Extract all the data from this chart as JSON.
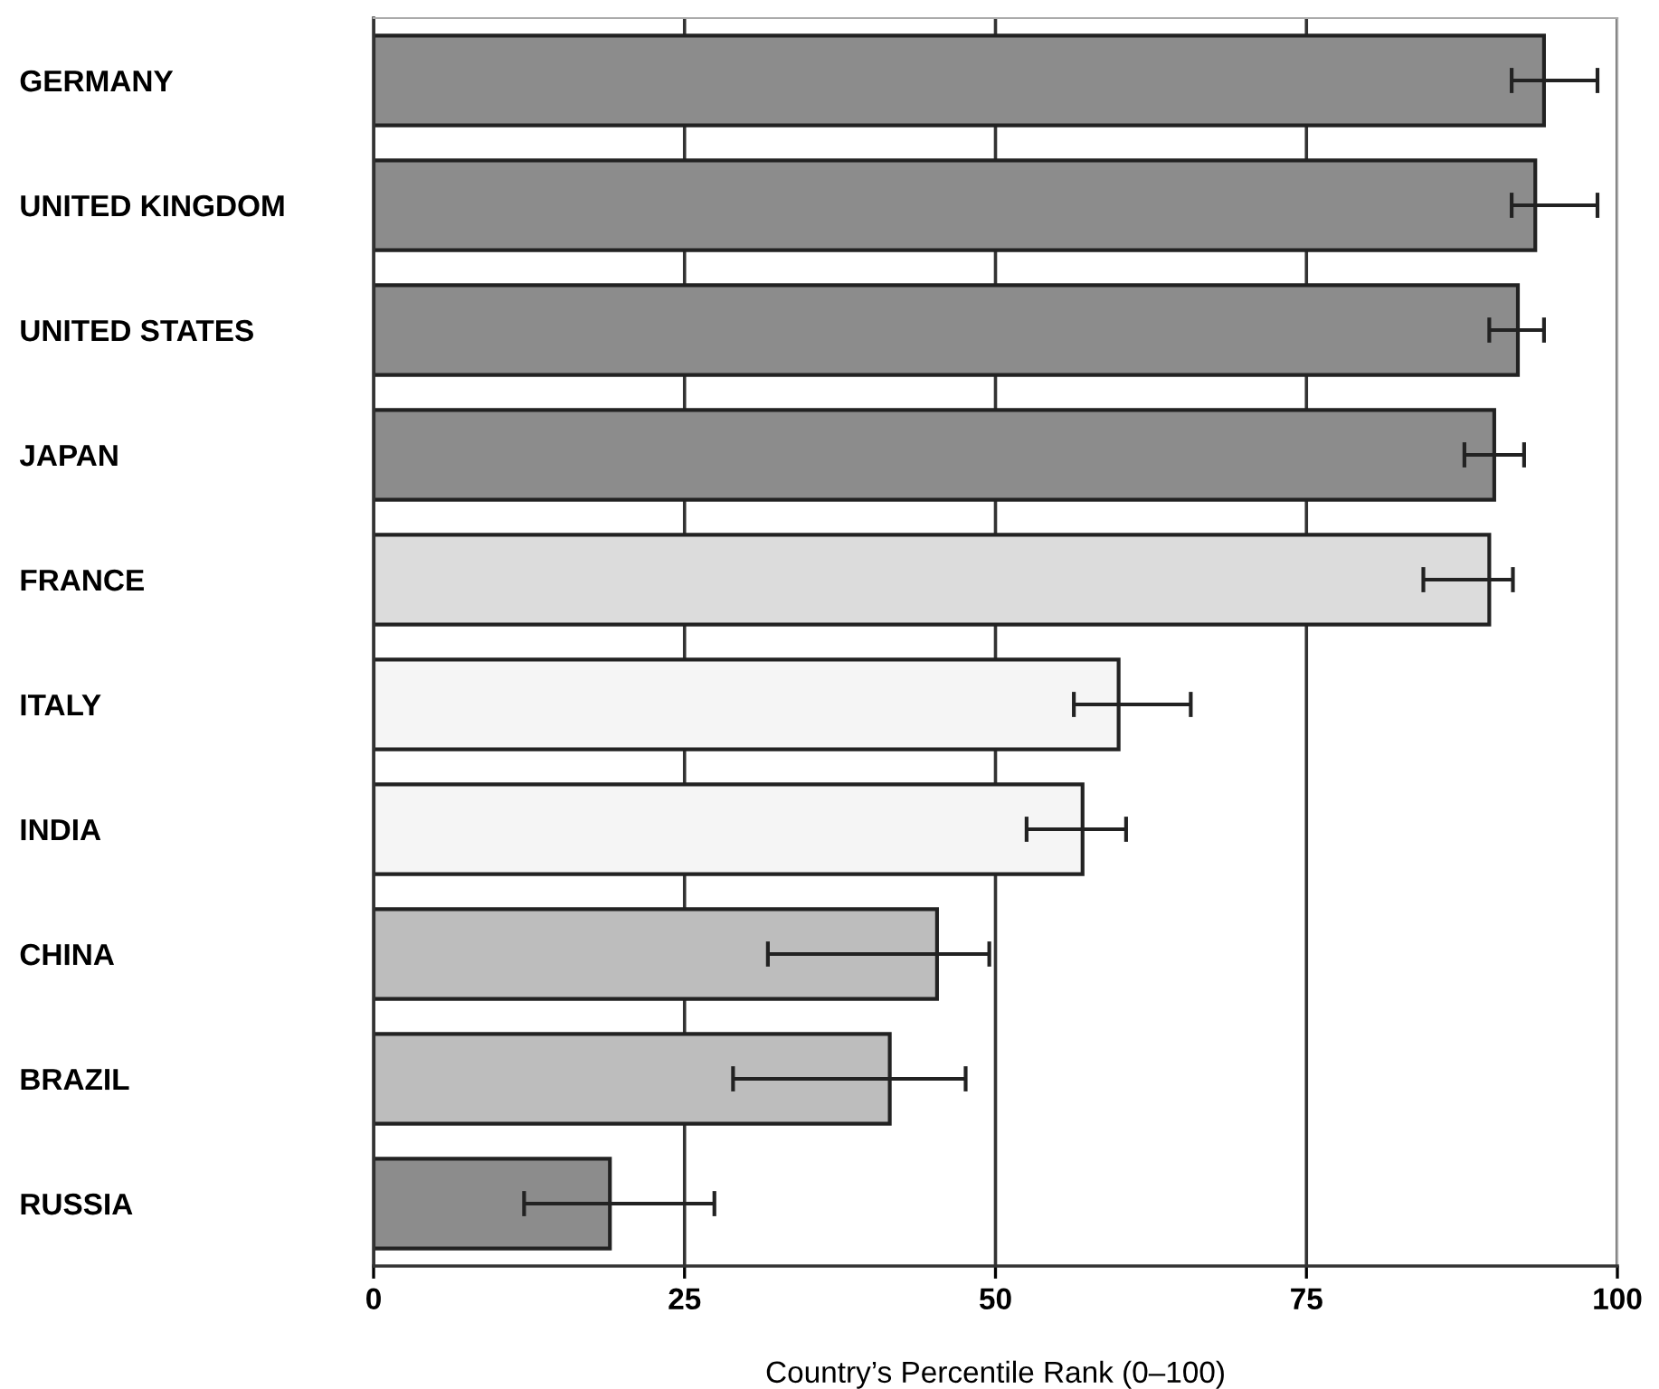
{
  "chart_data": {
    "type": "bar",
    "orientation": "horizontal",
    "xlabel": "Country’s Percentile Rank (0–100)",
    "categories": [
      "GERMANY",
      "UNITED KINGDOM",
      "UNITED STATES",
      "JAPAN",
      "FRANCE",
      "ITALY",
      "INDIA",
      "CHINA",
      "BRAZIL",
      "RUSSIA"
    ],
    "values": [
      94.1,
      93.4,
      92.0,
      90.1,
      89.7,
      59.9,
      57.0,
      45.3,
      41.5,
      19.0
    ],
    "colors": [
      "#8c8c8c",
      "#8c8c8c",
      "#8c8c8c",
      "#8c8c8c",
      "#dcdcdc",
      "#f5f5f5",
      "#f5f5f5",
      "#bdbdbd",
      "#bdbdbd",
      "#8c8c8c"
    ],
    "errors": [
      [
        91.5,
        98.4
      ],
      [
        91.5,
        98.4
      ],
      [
        89.7,
        94.1
      ],
      [
        87.7,
        92.5
      ],
      [
        84.4,
        91.6
      ],
      [
        56.3,
        65.7
      ],
      [
        52.5,
        60.5
      ],
      [
        31.7,
        49.5
      ],
      [
        28.9,
        47.6
      ],
      [
        12.1,
        27.4
      ]
    ],
    "xlim": [
      0,
      100
    ],
    "xticks": [
      0,
      25,
      50,
      75,
      100
    ],
    "grid": "x"
  }
}
